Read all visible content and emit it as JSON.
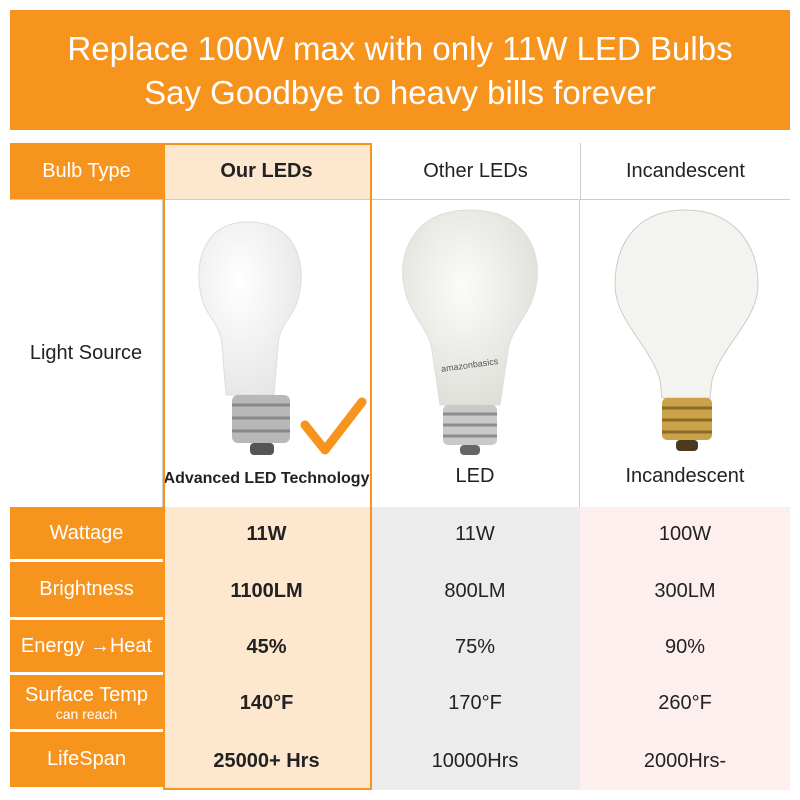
{
  "header": {
    "lines": [
      "Replace 100W max with only 11W LED Bulbs",
      "Say Goodbye to heavy bills forever"
    ]
  },
  "table": {
    "columns": [
      "Bulb Type",
      "Our LEDs",
      "Other LEDs",
      "Incandescent"
    ],
    "light_source": {
      "label": "Light Source",
      "captions": [
        "Advanced LED Technology",
        "LED",
        "Incandescent"
      ],
      "bulb_print": "amazonbasics"
    },
    "rows": [
      {
        "label": "Wattage",
        "values": [
          "11W",
          "11W",
          "100W"
        ]
      },
      {
        "label": "Brightness",
        "values": [
          "1100LM",
          "800LM",
          "300LM"
        ]
      },
      {
        "label": "Energy →Heat",
        "values": [
          "45%",
          "75%",
          "90%"
        ]
      },
      {
        "label": "Surface Temp",
        "sublabel": "can reach",
        "values": [
          "140°F",
          "170°F",
          "260°F"
        ]
      },
      {
        "label": "LifeSpan",
        "values": [
          "25000+ Hrs",
          "10000Hrs",
          "2000Hrs-"
        ]
      }
    ]
  }
}
